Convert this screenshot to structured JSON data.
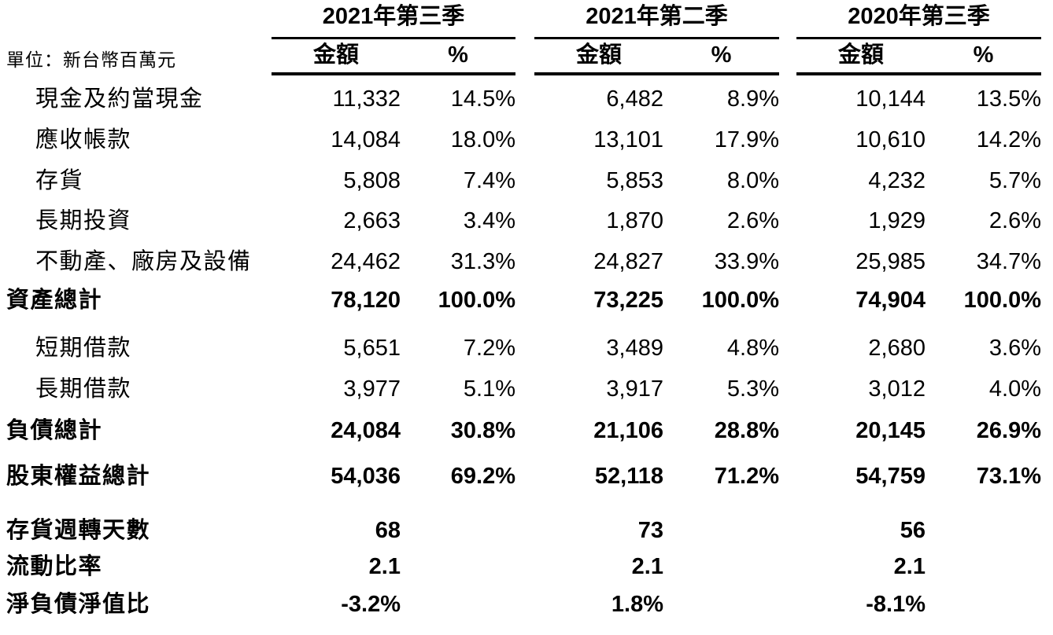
{
  "unit_label": "單位：新台幣百萬元",
  "colors": {
    "background": "#ffffff",
    "text": "#000000",
    "rule": "#000000"
  },
  "columns": [
    {
      "title": "2021年第三季",
      "amount_header": "金額",
      "pct_header": "%"
    },
    {
      "title": "2021年第二季",
      "amount_header": "金額",
      "pct_header": "%"
    },
    {
      "title": "2020年第三季",
      "amount_header": "金額",
      "pct_header": "%"
    }
  ],
  "rows": [
    {
      "label": "現金及約當現金",
      "style": "item",
      "cells": [
        [
          "11,332",
          "14.5%"
        ],
        [
          "6,482",
          "8.9%"
        ],
        [
          "10,144",
          "13.5%"
        ]
      ]
    },
    {
      "label": "應收帳款",
      "style": "item",
      "cells": [
        [
          "14,084",
          "18.0%"
        ],
        [
          "13,101",
          "17.9%"
        ],
        [
          "10,610",
          "14.2%"
        ]
      ]
    },
    {
      "label": "存貨",
      "style": "item",
      "cells": [
        [
          "5,808",
          "7.4%"
        ],
        [
          "5,853",
          "8.0%"
        ],
        [
          "4,232",
          "5.7%"
        ]
      ]
    },
    {
      "label": "長期投資",
      "style": "item",
      "cells": [
        [
          "2,663",
          "3.4%"
        ],
        [
          "1,870",
          "2.6%"
        ],
        [
          "1,929",
          "2.6%"
        ]
      ]
    },
    {
      "label": "不動產、廠房及設備",
      "style": "item",
      "cells": [
        [
          "24,462",
          "31.3%"
        ],
        [
          "24,827",
          "33.9%"
        ],
        [
          "25,985",
          "34.7%"
        ]
      ]
    },
    {
      "label": "資產總計",
      "style": "total",
      "cells": [
        [
          "78,120",
          "100.0%"
        ],
        [
          "73,225",
          "100.0%"
        ],
        [
          "74,904",
          "100.0%"
        ]
      ]
    },
    {
      "label": "短期借款",
      "style": "item",
      "cells": [
        [
          "5,651",
          "7.2%"
        ],
        [
          "3,489",
          "4.8%"
        ],
        [
          "2,680",
          "3.6%"
        ]
      ]
    },
    {
      "label": "長期借款",
      "style": "item",
      "cells": [
        [
          "3,977",
          "5.1%"
        ],
        [
          "3,917",
          "5.3%"
        ],
        [
          "3,012",
          "4.0%"
        ]
      ]
    },
    {
      "label": "負債總計",
      "style": "total",
      "cells": [
        [
          "24,084",
          "30.8%"
        ],
        [
          "21,106",
          "28.8%"
        ],
        [
          "20,145",
          "26.9%"
        ]
      ]
    },
    {
      "label": "股東權益總計",
      "style": "total",
      "cells": [
        [
          "54,036",
          "69.2%"
        ],
        [
          "52,118",
          "71.2%"
        ],
        [
          "54,759",
          "73.1%"
        ]
      ]
    },
    {
      "label": "存貨週轉天數",
      "style": "metric",
      "cells": [
        [
          "68",
          ""
        ],
        [
          "73",
          ""
        ],
        [
          "56",
          ""
        ]
      ]
    },
    {
      "label": "流動比率",
      "style": "metric",
      "cells": [
        [
          "2.1",
          ""
        ],
        [
          "2.1",
          ""
        ],
        [
          "2.1",
          ""
        ]
      ]
    },
    {
      "label": "淨負債淨值比",
      "style": "metric",
      "cells": [
        [
          "-3.2%",
          ""
        ],
        [
          "1.8%",
          ""
        ],
        [
          "-8.1%",
          ""
        ]
      ]
    }
  ]
}
